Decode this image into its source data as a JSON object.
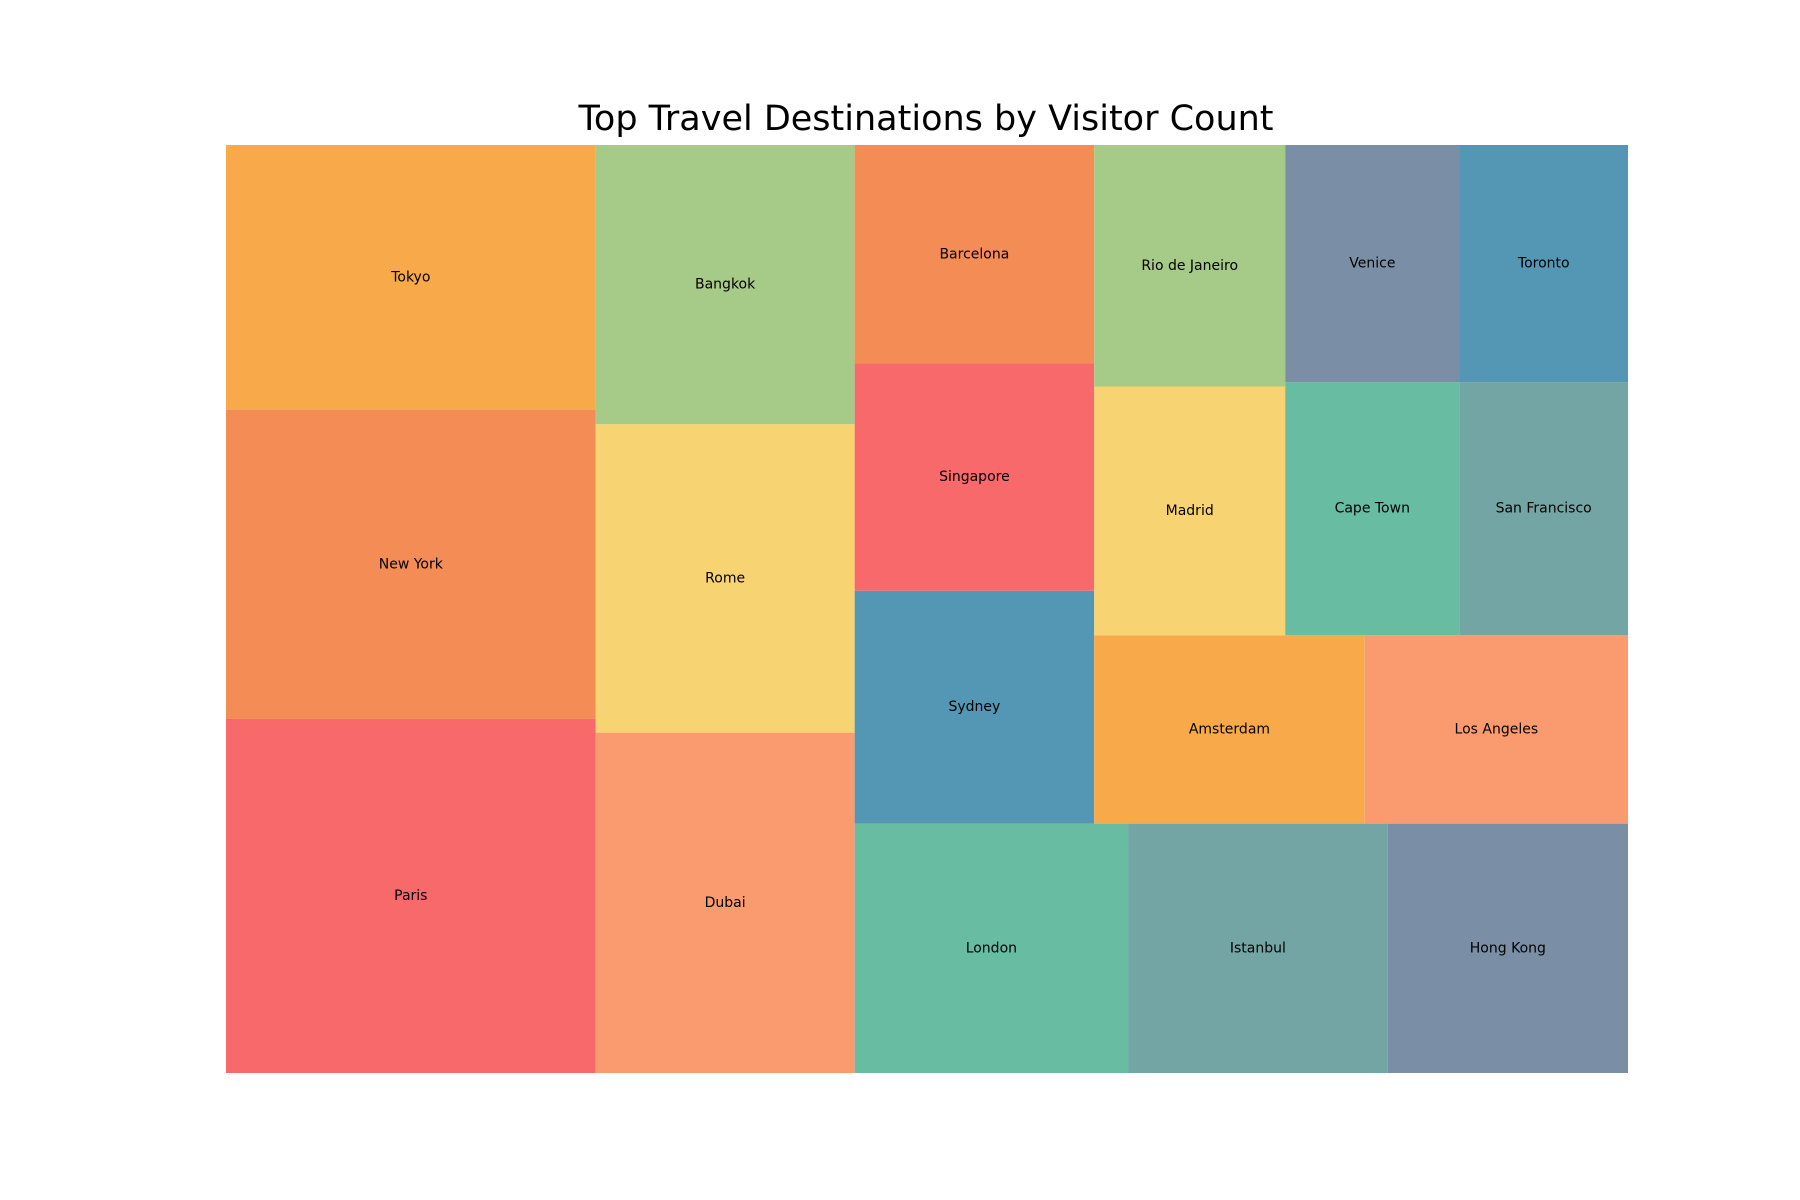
{
  "chart_data": {
    "type": "treemap",
    "title": "Top Travel Destinations by Visitor Count",
    "colors": [
      "#F8696B",
      "#F48C56",
      "#F8AA4B",
      "#5497B4",
      "#F8D371",
      "#A6CA87",
      "#67BCA1",
      "#73A5A4",
      "#7A8FA6",
      "#F99B6E"
    ],
    "items": [
      {
        "name": "Paris",
        "value": 19.0,
        "color": "#F8696B"
      },
      {
        "name": "New York",
        "value": 16.6,
        "color": "#F48C56"
      },
      {
        "name": "Tokyo",
        "value": 14.2,
        "color": "#F8AA4B"
      },
      {
        "name": "Dubai",
        "value": 12.8,
        "color": "#F99B6E"
      },
      {
        "name": "Rome",
        "value": 11.6,
        "color": "#F8D371"
      },
      {
        "name": "Bangkok",
        "value": 10.5,
        "color": "#A6CA87"
      },
      {
        "name": "London",
        "value": 9.9,
        "color": "#67BCA1"
      },
      {
        "name": "Istanbul",
        "value": 9.4,
        "color": "#73A5A4"
      },
      {
        "name": "Hong Kong",
        "value": 8.7,
        "color": "#7A8FA6"
      },
      {
        "name": "Sydney",
        "value": 8.1,
        "color": "#5497B4"
      },
      {
        "name": "Singapore",
        "value": 7.9,
        "color": "#F8696B"
      },
      {
        "name": "Barcelona",
        "value": 7.6,
        "color": "#F48C56"
      },
      {
        "name": "Amsterdam",
        "value": 7.4,
        "color": "#F8AA4B"
      },
      {
        "name": "Los Angeles",
        "value": 7.2,
        "color": "#F99B6E"
      },
      {
        "name": "Madrid",
        "value": 6.9,
        "color": "#F8D371"
      },
      {
        "name": "Rio de Janeiro",
        "value": 6.7,
        "color": "#A6CA87"
      },
      {
        "name": "Cape Town",
        "value": 6.4,
        "color": "#67BCA1"
      },
      {
        "name": "San Francisco",
        "value": 6.2,
        "color": "#73A5A4"
      },
      {
        "name": "Venice",
        "value": 6.0,
        "color": "#7A8FA6"
      },
      {
        "name": "Toronto",
        "value": 5.8,
        "color": "#5497B4"
      }
    ]
  }
}
